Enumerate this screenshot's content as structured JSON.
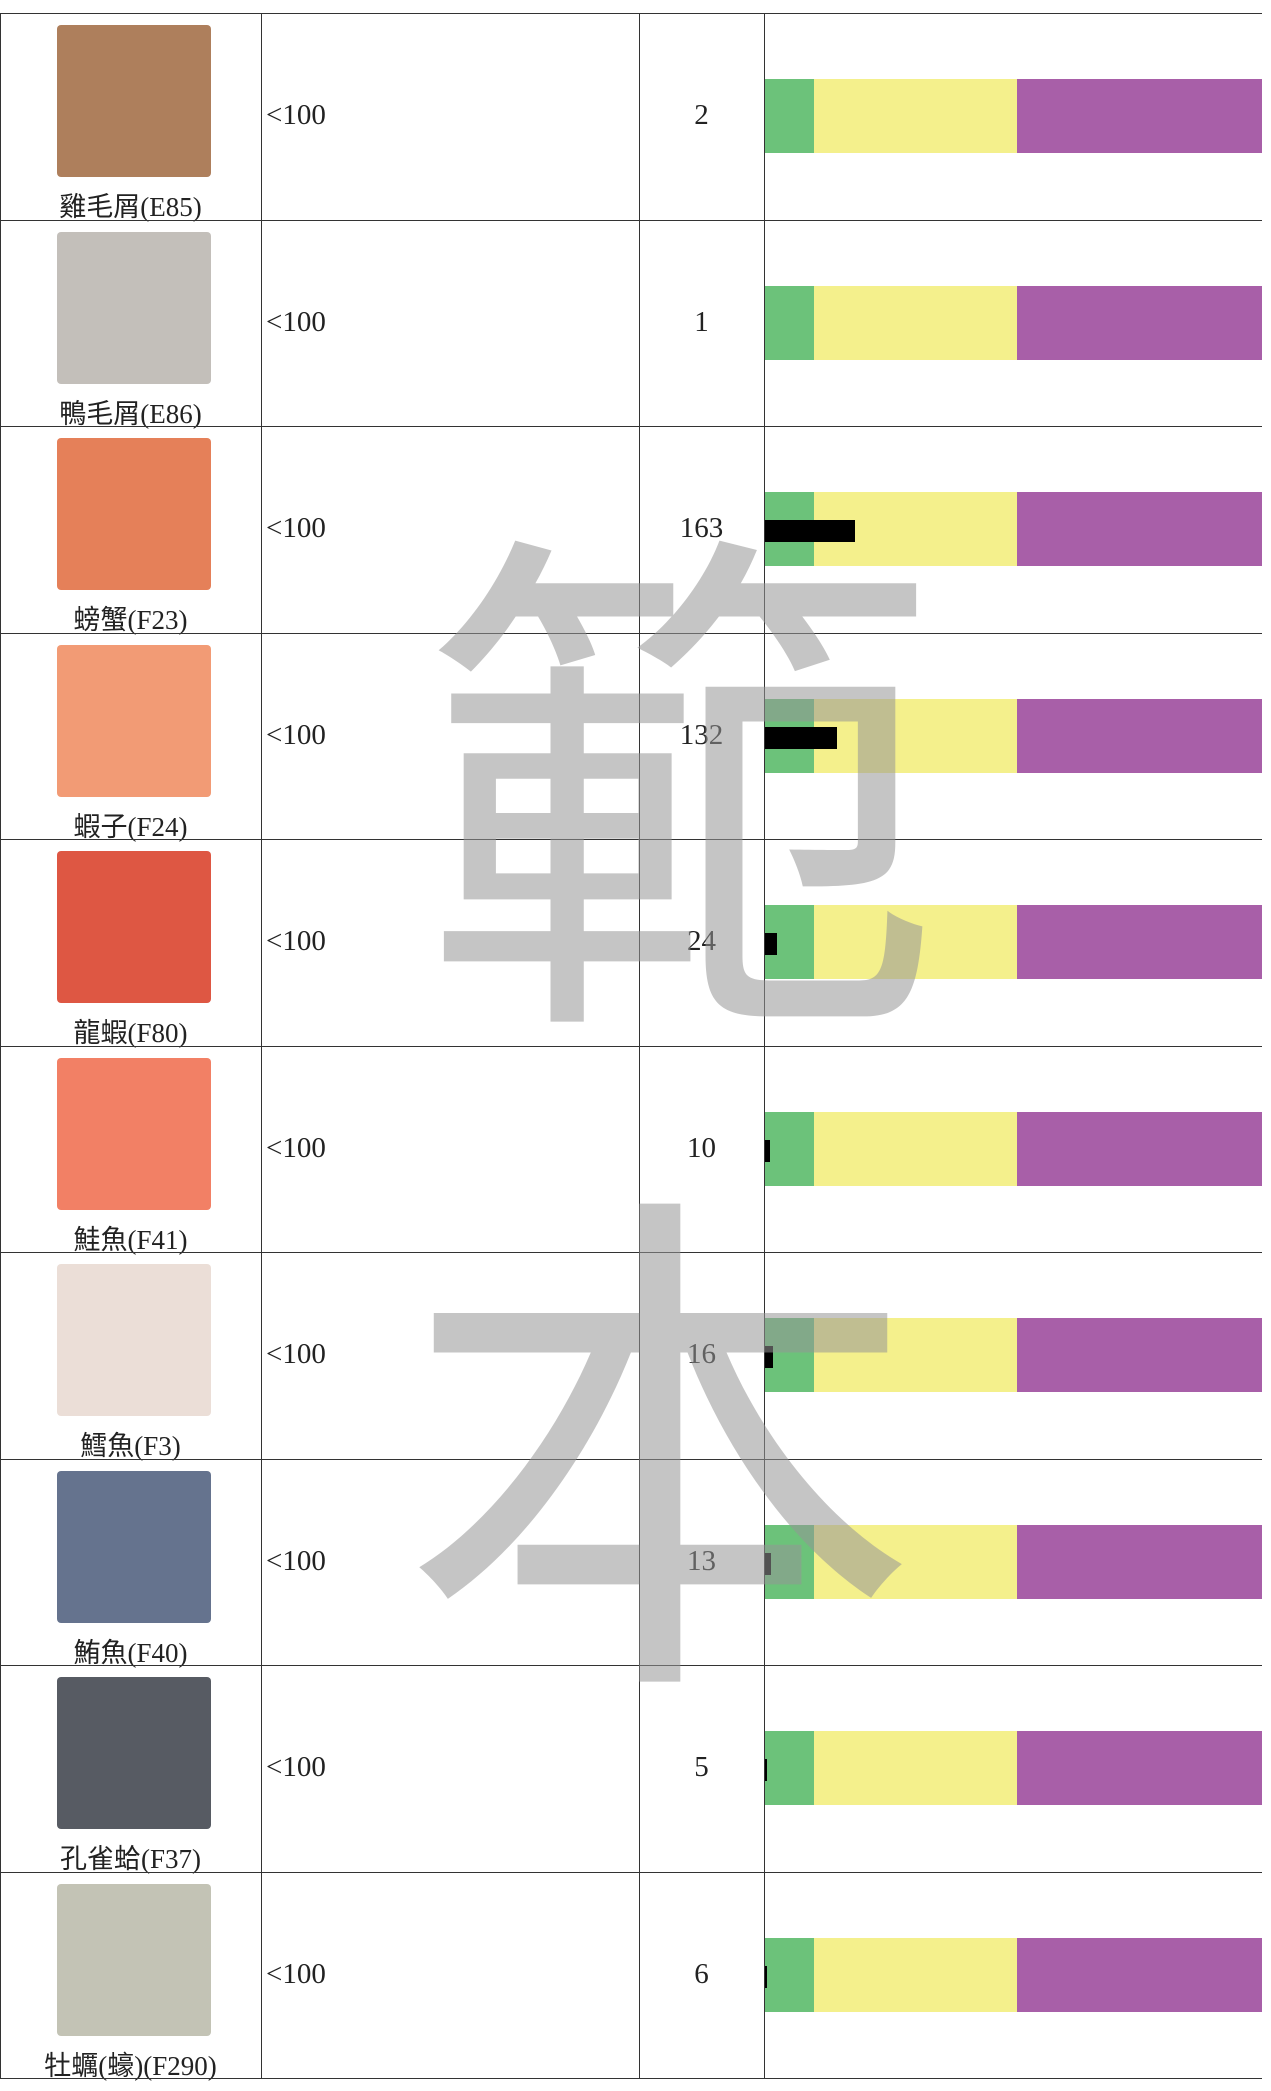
{
  "watermark": [
    "範",
    "本"
  ],
  "table": {
    "rows": [
      {
        "label": "雞毛屑(E85)",
        "range": "<100",
        "value": 2
      },
      {
        "label": "鴨毛屑(E86)",
        "range": "<100",
        "value": 1
      },
      {
        "label": "螃蟹(F23)",
        "range": "<100",
        "value": 163
      },
      {
        "label": "蝦子(F24)",
        "range": "<100",
        "value": 132
      },
      {
        "label": "龍蝦(F80)",
        "range": "<100",
        "value": 24
      },
      {
        "label": "鮭魚(F41)",
        "range": "<100",
        "value": 10
      },
      {
        "label": "鱈魚(F3)",
        "range": "<100",
        "value": 16
      },
      {
        "label": "鮪魚(F40)",
        "range": "<100",
        "value": 13
      },
      {
        "label": "孔雀蛤(F37)",
        "range": "<100",
        "value": 5
      },
      {
        "label": "牡蠣(蠔)(F290)",
        "range": "<100",
        "value": 6
      }
    ]
  }
}
